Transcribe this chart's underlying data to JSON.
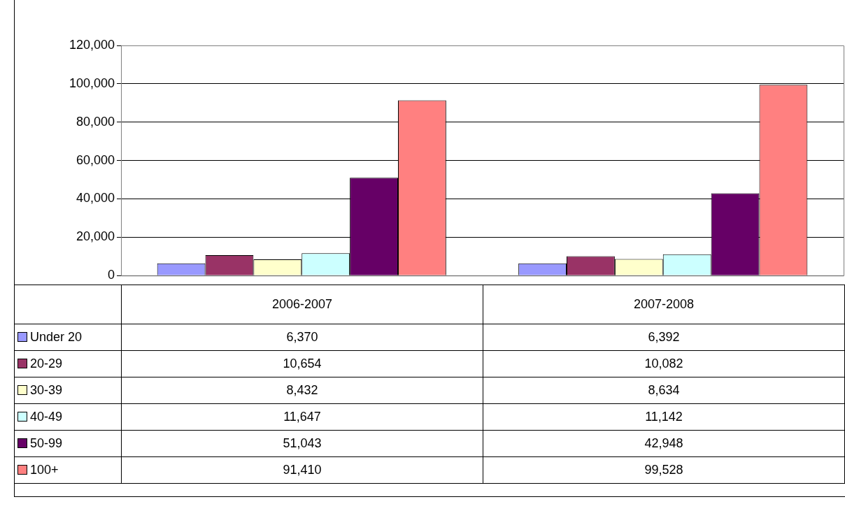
{
  "chart_data": {
    "type": "bar",
    "categories": [
      "2006-2007",
      "2007-2008"
    ],
    "series": [
      {
        "name": "Under 20",
        "color": "#9999ff",
        "values": [
          6370,
          6392
        ],
        "value_labels": [
          "6,370",
          "6,392"
        ]
      },
      {
        "name": "20-29",
        "color": "#993366",
        "values": [
          10654,
          10082
        ],
        "value_labels": [
          "10,654",
          "10,082"
        ]
      },
      {
        "name": "30-39",
        "color": "#ffffcc",
        "values": [
          8432,
          8634
        ],
        "value_labels": [
          "8,432",
          "8,634"
        ]
      },
      {
        "name": "40-49",
        "color": "#ccffff",
        "values": [
          11647,
          11142
        ],
        "value_labels": [
          "11,647",
          "11,142"
        ]
      },
      {
        "name": "50-99",
        "color": "#660066",
        "values": [
          51043,
          42948
        ],
        "value_labels": [
          "51,043",
          "42,948"
        ]
      },
      {
        "name": "100+",
        "color": "#ff8080",
        "values": [
          91410,
          99528
        ],
        "value_labels": [
          "91,410",
          "99,528"
        ]
      }
    ],
    "ylim": [
      0,
      120000
    ],
    "yticks": [
      {
        "value": 0,
        "label": "0"
      },
      {
        "value": 20000,
        "label": "20,000"
      },
      {
        "value": 40000,
        "label": "40,000"
      },
      {
        "value": 60000,
        "label": "60,000"
      },
      {
        "value": 80000,
        "label": "80,000"
      },
      {
        "value": 100000,
        "label": "100,000"
      },
      {
        "value": 120000,
        "label": "120,000"
      }
    ],
    "grid": "y",
    "legend": "bottom"
  }
}
